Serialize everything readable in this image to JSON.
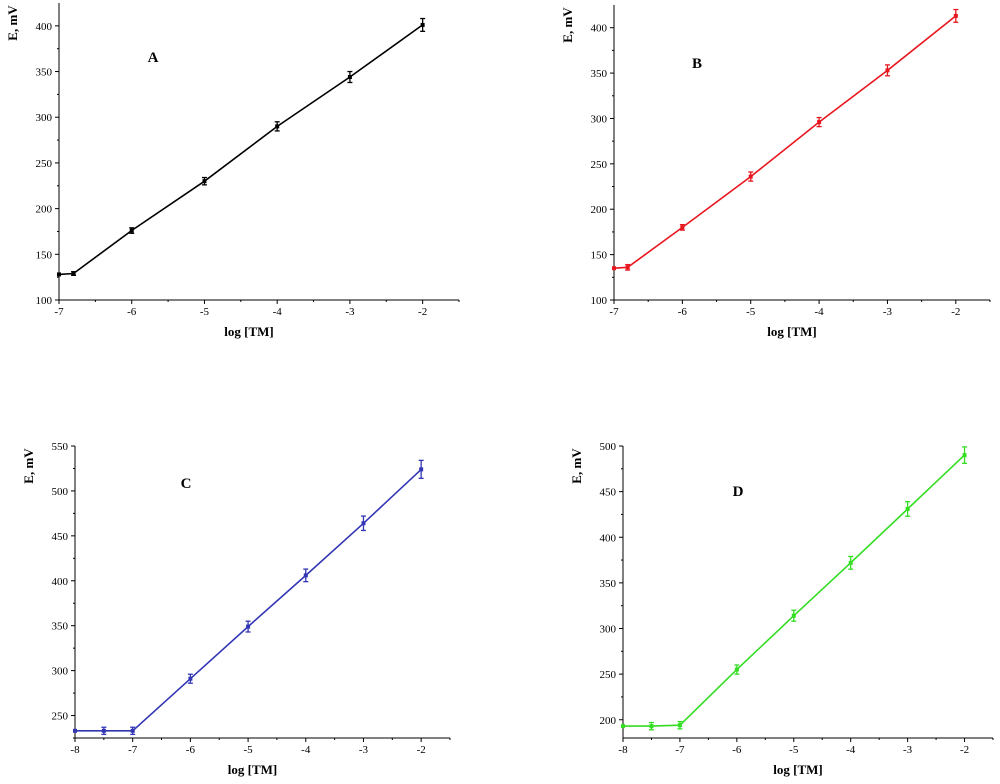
{
  "chart_data": [
    {
      "type": "line",
      "panel_label": "A",
      "color": "#000000",
      "xlabel": "log [TM]",
      "ylabel": "E, mV",
      "xlim": [
        -7,
        -1.5
      ],
      "ylim": [
        100,
        425
      ],
      "xticks": [
        -7,
        -6,
        -5,
        -4,
        -3,
        -2
      ],
      "yticks": [
        100,
        150,
        200,
        250,
        300,
        350,
        400
      ],
      "xtick_labels": [
        "-7",
        "-6",
        "-5",
        "-4",
        "-3",
        "-2"
      ],
      "ytick_labels": [
        "100",
        "150",
        "200",
        "250",
        "300",
        "350",
        "400"
      ],
      "points": [
        {
          "x": -7,
          "y": 128,
          "err": 0
        },
        {
          "x": -6.8,
          "y": 129,
          "err": 2
        },
        {
          "x": -6,
          "y": 176,
          "err": 3
        },
        {
          "x": -5,
          "y": 230,
          "err": 4
        },
        {
          "x": -4,
          "y": 290,
          "err": 5
        },
        {
          "x": -3,
          "y": 344,
          "err": 6
        },
        {
          "x": -2,
          "y": 401,
          "err": 7
        }
      ]
    },
    {
      "type": "line",
      "panel_label": "B",
      "color": "#e8161e",
      "xlabel": "log [TM]",
      "ylabel": "E, mV",
      "xlim": [
        -7,
        -1.5
      ],
      "ylim": [
        100,
        425
      ],
      "xticks": [
        -7,
        -6,
        -5,
        -4,
        -3,
        -2
      ],
      "yticks": [
        100,
        150,
        200,
        250,
        300,
        350,
        400
      ],
      "xtick_labels": [
        "-7",
        "-6",
        "-5",
        "-4",
        "-3",
        "-2"
      ],
      "ytick_labels": [
        "100",
        "150",
        "200",
        "250",
        "300",
        "350",
        "400"
      ],
      "points": [
        {
          "x": -7,
          "y": 135,
          "err": 0
        },
        {
          "x": -6.8,
          "y": 136,
          "err": 3
        },
        {
          "x": -6,
          "y": 180,
          "err": 3
        },
        {
          "x": -5,
          "y": 236,
          "err": 5
        },
        {
          "x": -4,
          "y": 296,
          "err": 5
        },
        {
          "x": -3,
          "y": 353,
          "err": 6
        },
        {
          "x": -2,
          "y": 413,
          "err": 7
        }
      ]
    },
    {
      "type": "line",
      "panel_label": "C",
      "color": "#3236b4",
      "xlabel": "log [TM]",
      "ylabel": "E, mV",
      "xlim": [
        -8,
        -1.5
      ],
      "ylim": [
        225,
        550
      ],
      "xticks": [
        -8,
        -7,
        -6,
        -5,
        -4,
        -3,
        -2
      ],
      "yticks": [
        250,
        300,
        350,
        400,
        450,
        500,
        550
      ],
      "xtick_labels": [
        "-8",
        "-7",
        "-6",
        "-5",
        "-4",
        "-3",
        "-2"
      ],
      "ytick_labels": [
        "250",
        "300",
        "350",
        "400",
        "450",
        "500",
        "550"
      ],
      "points": [
        {
          "x": -8,
          "y": 233,
          "err": 0
        },
        {
          "x": -7.5,
          "y": 233,
          "err": 4
        },
        {
          "x": -7,
          "y": 233,
          "err": 4
        },
        {
          "x": -6,
          "y": 291,
          "err": 5
        },
        {
          "x": -5,
          "y": 349,
          "err": 6
        },
        {
          "x": -4,
          "y": 406,
          "err": 7
        },
        {
          "x": -3,
          "y": 464,
          "err": 8
        },
        {
          "x": -2,
          "y": 524,
          "err": 10
        }
      ]
    },
    {
      "type": "line",
      "panel_label": "D",
      "color": "#33dd22",
      "xlabel": "log [TM]",
      "ylabel": "E, mV",
      "xlim": [
        -8,
        -1.5
      ],
      "ylim": [
        180,
        500
      ],
      "xticks": [
        -8,
        -7,
        -6,
        -5,
        -4,
        -3,
        -2
      ],
      "yticks": [
        200,
        250,
        300,
        350,
        400,
        450,
        500
      ],
      "xtick_labels": [
        "-8",
        "-7",
        "-6",
        "-5",
        "-4",
        "-3",
        "-2"
      ],
      "ytick_labels": [
        "200",
        "250",
        "300",
        "350",
        "400",
        "450",
        "500"
      ],
      "points": [
        {
          "x": -8,
          "y": 193,
          "err": 0
        },
        {
          "x": -7.5,
          "y": 193,
          "err": 4
        },
        {
          "x": -7,
          "y": 194,
          "err": 4
        },
        {
          "x": -6,
          "y": 255,
          "err": 5
        },
        {
          "x": -5,
          "y": 314,
          "err": 6
        },
        {
          "x": -4,
          "y": 372,
          "err": 7
        },
        {
          "x": -3,
          "y": 431,
          "err": 8
        },
        {
          "x": -2,
          "y": 490,
          "err": 9
        }
      ]
    }
  ]
}
